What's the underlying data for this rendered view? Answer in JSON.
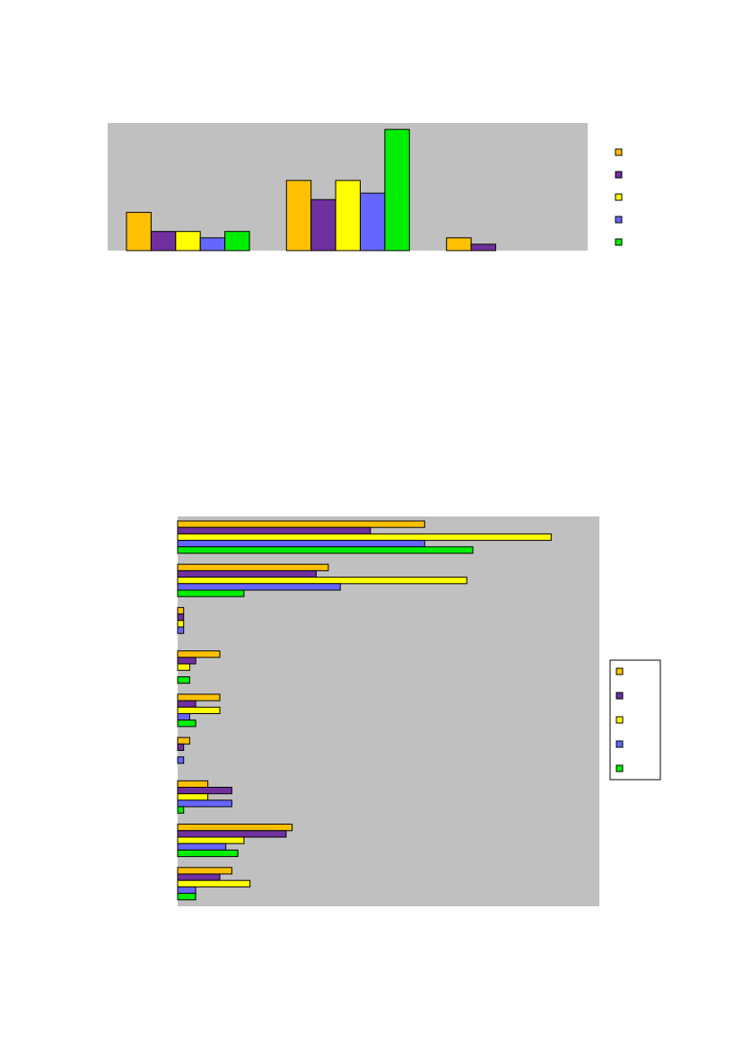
{
  "colors": {
    "plot_bg": "#c0c0c0",
    "series": [
      "#ffc000",
      "#7030a0",
      "#ffff00",
      "#6666ff",
      "#00ee00"
    ]
  },
  "chart_data": [
    {
      "type": "bar",
      "orientation": "vertical",
      "title": "",
      "xlabel": "",
      "ylabel": "",
      "categories": [
        "",
        "",
        ""
      ],
      "series": [
        {
          "values": [
            3,
            5.5,
            1
          ]
        },
        {
          "values": [
            1.5,
            4,
            0.5
          ]
        },
        {
          "values": [
            1.5,
            5.5,
            0
          ]
        },
        {
          "values": [
            1,
            4.5,
            0
          ]
        },
        {
          "values": [
            1.5,
            9.5,
            0
          ]
        }
      ],
      "ylim": [
        0,
        10
      ],
      "grid": false,
      "legend_position": "right",
      "legend_entries": [
        "",
        "",
        "",
        "",
        ""
      ],
      "legend_border": false
    },
    {
      "type": "bar",
      "orientation": "horizontal",
      "title": "",
      "xlabel": "",
      "ylabel": "",
      "categories": [
        "",
        "",
        "",
        "",
        "",
        "",
        "",
        "",
        ""
      ],
      "series": [
        {
          "values": [
            41,
            25,
            1,
            7,
            7,
            2,
            5,
            19,
            9
          ]
        },
        {
          "values": [
            32,
            23,
            1,
            3,
            3,
            1,
            9,
            18,
            7
          ]
        },
        {
          "values": [
            62,
            48,
            1,
            2,
            7,
            0,
            5,
            11,
            12
          ]
        },
        {
          "values": [
            41,
            27,
            1,
            0,
            2,
            1,
            9,
            8,
            3
          ]
        },
        {
          "values": [
            49,
            11,
            0,
            2,
            3,
            0,
            1,
            10,
            3
          ]
        }
      ],
      "xlim": [
        0,
        70
      ],
      "grid": false,
      "legend_position": "right",
      "legend_entries": [
        "",
        "",
        "",
        "",
        ""
      ],
      "legend_border": true
    }
  ]
}
